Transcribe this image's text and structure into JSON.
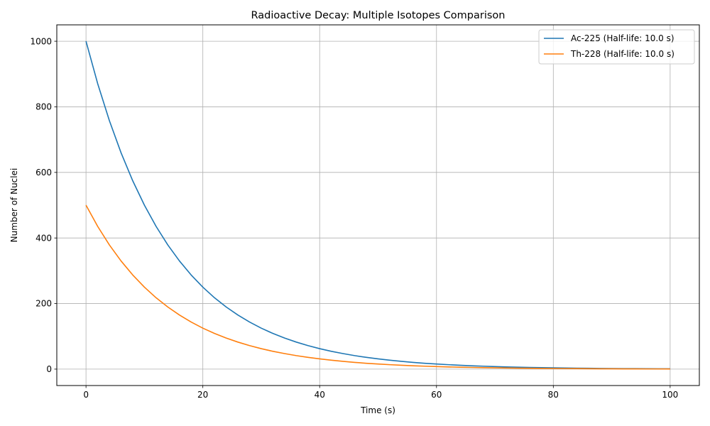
{
  "chart_data": {
    "type": "line",
    "title": "Radioactive Decay: Multiple Isotopes Comparison",
    "xlabel": "Time (s)",
    "ylabel": "Number of Nuclei",
    "xlim": [
      -5,
      105
    ],
    "ylim": [
      -50,
      1050
    ],
    "xticks": [
      0,
      20,
      40,
      60,
      80,
      100
    ],
    "yticks": [
      0,
      200,
      400,
      600,
      800,
      1000
    ],
    "grid": true,
    "legend_position": "top-right",
    "x": [
      0,
      2,
      4,
      6,
      8,
      10,
      12,
      14,
      16,
      18,
      20,
      22,
      24,
      26,
      28,
      30,
      32,
      34,
      36,
      38,
      40,
      42,
      44,
      46,
      48,
      50,
      52,
      54,
      56,
      58,
      60,
      62,
      64,
      66,
      68,
      70,
      72,
      74,
      76,
      78,
      80,
      82,
      84,
      86,
      88,
      90,
      92,
      94,
      96,
      98,
      100
    ],
    "series": [
      {
        "name": "Ac-225 (Half-life: 10.0 s)",
        "color": "#1f77b4",
        "values": [
          1000,
          870.6,
          757.9,
          659.8,
          574.4,
          500.0,
          435.3,
          378.9,
          329.9,
          287.2,
          250.0,
          217.6,
          189.5,
          165.0,
          143.6,
          125.0,
          108.8,
          94.7,
          82.5,
          71.8,
          62.5,
          54.4,
          47.4,
          41.2,
          35.9,
          31.3,
          27.2,
          23.7,
          20.6,
          17.9,
          15.6,
          13.6,
          11.8,
          10.3,
          9.0,
          7.8,
          6.8,
          5.9,
          5.2,
          4.5,
          3.9,
          3.4,
          3.0,
          2.6,
          2.2,
          2.0,
          1.7,
          1.5,
          1.3,
          1.1,
          1.0
        ]
      },
      {
        "name": "Th-228 (Half-life: 10.0 s)",
        "color": "#ff7f0e",
        "values": [
          500,
          435.3,
          378.9,
          329.9,
          287.2,
          250.0,
          217.6,
          189.5,
          165.0,
          143.6,
          125.0,
          108.8,
          94.7,
          82.5,
          71.8,
          62.5,
          54.4,
          47.4,
          41.2,
          35.9,
          31.3,
          27.2,
          23.7,
          20.6,
          17.9,
          15.6,
          13.6,
          11.8,
          10.3,
          9.0,
          7.8,
          6.8,
          5.9,
          5.2,
          4.5,
          3.9,
          3.4,
          3.0,
          2.6,
          2.2,
          2.0,
          1.7,
          1.5,
          1.3,
          1.1,
          1.0,
          0.8,
          0.7,
          0.6,
          0.6,
          0.5
        ]
      }
    ]
  }
}
